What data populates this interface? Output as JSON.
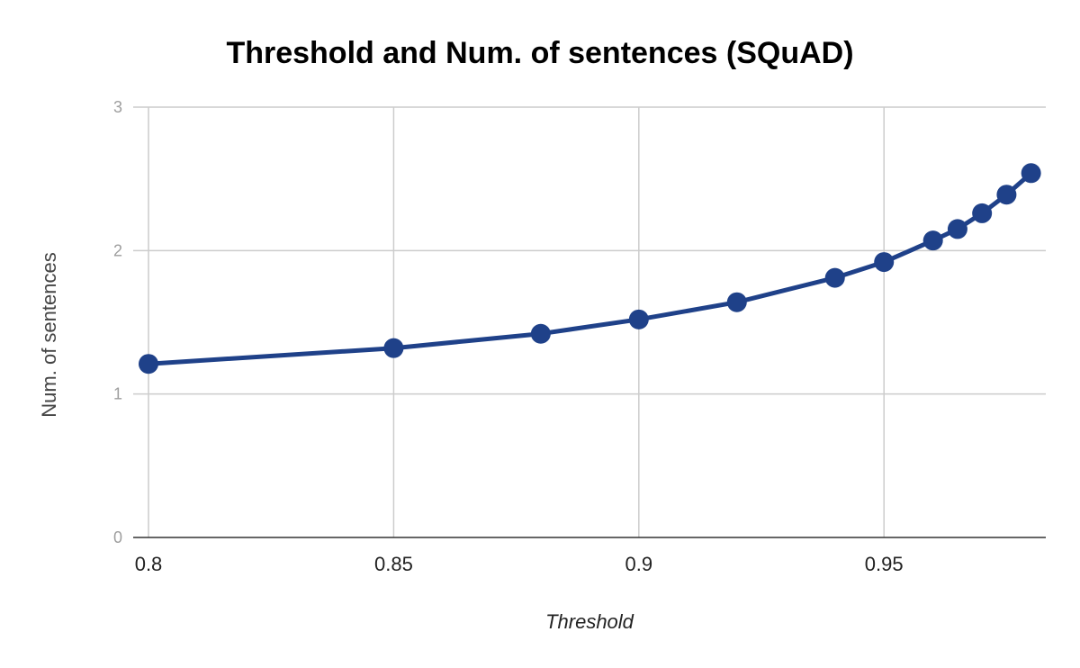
{
  "chart_data": {
    "type": "line",
    "title": "Threshold and Num. of sentences (SQuAD)",
    "xlabel": "Threshold",
    "ylabel": "Num. of sentences",
    "xlim": [
      0.8,
      0.983
    ],
    "ylim": [
      0,
      3
    ],
    "x_ticks": [
      "0.8",
      "0.85",
      "0.9",
      "0.95"
    ],
    "x_tick_values": [
      0.8,
      0.85,
      0.9,
      0.95
    ],
    "y_ticks": [
      "0",
      "1",
      "2",
      "3"
    ],
    "y_tick_values": [
      0,
      1,
      2,
      3
    ],
    "grid": true,
    "legend": "none",
    "series": [
      {
        "color": "#1f4189",
        "x": [
          0.8,
          0.85,
          0.88,
          0.9,
          0.92,
          0.94,
          0.95,
          0.96,
          0.965,
          0.97,
          0.975,
          0.98
        ],
        "y": [
          1.21,
          1.32,
          1.42,
          1.52,
          1.64,
          1.81,
          1.92,
          2.07,
          2.15,
          2.26,
          2.39,
          2.54
        ]
      }
    ]
  }
}
